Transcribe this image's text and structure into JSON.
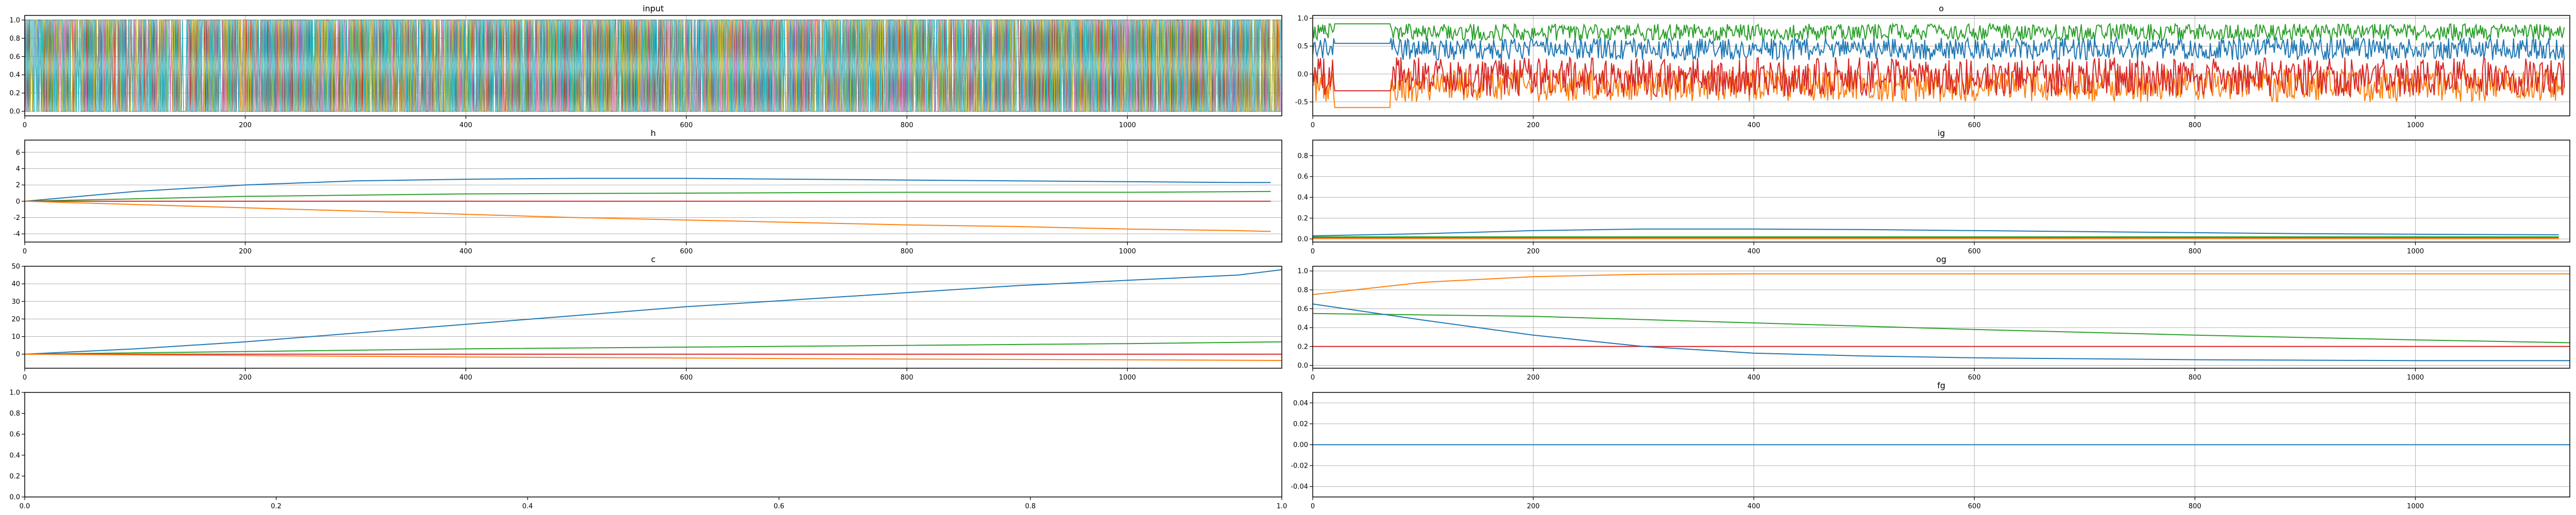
{
  "colors": [
    "#1f77b4",
    "#ff7f0e",
    "#2ca02c",
    "#d62728",
    "#9467bd",
    "#8c564b",
    "#e377c2",
    "#7f7f7f",
    "#bcbd22",
    "#17becf"
  ],
  "chart_data": [
    {
      "id": "input",
      "type": "line",
      "title": "input",
      "grid": true,
      "xlim": [
        0,
        1140
      ],
      "ylim": [
        -0.05,
        1.05
      ],
      "xticks": [
        0,
        200,
        400,
        600,
        800,
        1000
      ],
      "yticks": [
        0.0,
        0.2,
        0.4,
        0.6,
        0.8,
        1.0
      ],
      "ytick_labels": [
        "0.0",
        "0.2",
        "0.4",
        "0.6",
        "0.8",
        "1.0"
      ],
      "dense_series": {
        "kind": "binary_switching",
        "n_series": 10,
        "length": 1140,
        "values": [
          0,
          1
        ]
      }
    },
    {
      "id": "o",
      "type": "line",
      "title": "o",
      "grid": true,
      "xlim": [
        0,
        1140
      ],
      "ylim": [
        -0.75,
        1.05
      ],
      "xticks": [
        0,
        200,
        400,
        600,
        800,
        1000
      ],
      "yticks": [
        -0.5,
        0.0,
        0.5,
        1.0
      ],
      "ytick_labels": [
        "-0.5",
        "0.0",
        "0.5",
        "1.0"
      ],
      "series": [
        {
          "color": "#ff7f0e",
          "pattern": "oscillating",
          "center": -0.2,
          "amplitude": 0.3,
          "flat_region": [
            20,
            70,
            -0.6
          ]
        },
        {
          "color": "#2ca02c",
          "pattern": "oscillating",
          "center": 0.75,
          "amplitude": 0.15,
          "flat_region": [
            20,
            70,
            0.9
          ]
        },
        {
          "color": "#1f77b4",
          "pattern": "oscillating",
          "center": 0.45,
          "amplitude": 0.2,
          "flat_region": [
            20,
            70,
            0.55
          ]
        },
        {
          "color": "#d62728",
          "pattern": "oscillating",
          "center": -0.05,
          "amplitude": 0.35,
          "flat_region": [
            20,
            70,
            -0.3
          ]
        }
      ]
    },
    {
      "id": "h",
      "type": "line",
      "title": "h",
      "grid": true,
      "xlim": [
        0,
        1140
      ],
      "ylim": [
        -5,
        7.5
      ],
      "xticks": [
        0,
        200,
        400,
        600,
        800,
        1000
      ],
      "yticks": [
        -4,
        -2,
        0,
        2,
        4,
        6
      ],
      "ytick_labels": [
        "-4",
        "-2",
        "0",
        "2",
        "4",
        "6"
      ],
      "series": [
        {
          "color": "#1f77b4",
          "x": [
            0,
            100,
            200,
            300,
            400,
            500,
            600,
            700,
            800,
            900,
            1000,
            1100,
            1130
          ],
          "y": [
            0,
            1.2,
            2.0,
            2.5,
            2.7,
            2.8,
            2.8,
            2.7,
            2.6,
            2.5,
            2.4,
            2.3,
            2.3
          ]
        },
        {
          "color": "#2ca02c",
          "x": [
            0,
            200,
            400,
            600,
            800,
            1000,
            1130
          ],
          "y": [
            0,
            0.6,
            0.9,
            1.0,
            1.1,
            1.1,
            1.2
          ]
        },
        {
          "color": "#d62728",
          "x": [
            0,
            1130
          ],
          "y": [
            0,
            0
          ]
        },
        {
          "color": "#ff7f0e",
          "x": [
            0,
            100,
            200,
            300,
            400,
            500,
            600,
            700,
            800,
            900,
            1000,
            1100,
            1130
          ],
          "y": [
            0,
            -0.4,
            -0.8,
            -1.2,
            -1.6,
            -2.0,
            -2.3,
            -2.6,
            -2.9,
            -3.1,
            -3.4,
            -3.6,
            -3.7
          ]
        }
      ]
    },
    {
      "id": "ig",
      "type": "line",
      "title": "ig",
      "grid": true,
      "xlim": [
        0,
        1140
      ],
      "ylim": [
        -0.03,
        0.95
      ],
      "xticks": [
        0,
        200,
        400,
        600,
        800,
        1000
      ],
      "yticks": [
        0.0,
        0.2,
        0.4,
        0.6,
        0.8
      ],
      "ytick_labels": [
        "0.0",
        "0.2",
        "0.4",
        "0.6",
        "0.8"
      ],
      "series": [
        {
          "color": "#1f77b4",
          "x": [
            0,
            100,
            200,
            300,
            400,
            500,
            600,
            700,
            800,
            900,
            1000,
            1130
          ],
          "y": [
            0.03,
            0.05,
            0.08,
            0.095,
            0.095,
            0.09,
            0.08,
            0.07,
            0.06,
            0.05,
            0.045,
            0.04
          ]
        },
        {
          "color": "#2ca02c",
          "x": [
            0,
            1130
          ],
          "y": [
            0.02,
            0.02
          ]
        },
        {
          "color": "#d62728",
          "x": [
            0,
            1130
          ],
          "y": [
            0.01,
            0.01
          ]
        },
        {
          "color": "#ff7f0e",
          "x": [
            0,
            1130
          ],
          "y": [
            0.005,
            0.005
          ]
        }
      ]
    },
    {
      "id": "c",
      "type": "line",
      "title": "c",
      "grid": true,
      "xlim": [
        0,
        1140
      ],
      "ylim": [
        -8,
        50
      ],
      "xticks": [
        0,
        200,
        400,
        600,
        800,
        1000
      ],
      "yticks": [
        0,
        10,
        20,
        30,
        40,
        50
      ],
      "ytick_labels": [
        "0",
        "10",
        "20",
        "30",
        "40",
        "50"
      ],
      "series": [
        {
          "color": "#1f77b4",
          "x": [
            0,
            100,
            200,
            300,
            400,
            500,
            600,
            700,
            800,
            900,
            1000,
            1100,
            1140
          ],
          "y": [
            0,
            3,
            7,
            12,
            17,
            22,
            27,
            31,
            35,
            39,
            42,
            45,
            48
          ]
        },
        {
          "color": "#2ca02c",
          "x": [
            0,
            200,
            400,
            600,
            800,
            1000,
            1140
          ],
          "y": [
            0,
            1.5,
            3,
            4,
            5,
            6,
            7
          ]
        },
        {
          "color": "#d62728",
          "x": [
            0,
            1140
          ],
          "y": [
            0,
            0
          ]
        },
        {
          "color": "#ff7f0e",
          "x": [
            0,
            200,
            400,
            600,
            800,
            1000,
            1140
          ],
          "y": [
            0,
            -0.8,
            -1.6,
            -2.2,
            -2.8,
            -3.2,
            -3.6
          ]
        }
      ]
    },
    {
      "id": "og",
      "type": "line",
      "title": "og",
      "grid": true,
      "xlim": [
        0,
        1140
      ],
      "ylim": [
        -0.03,
        1.05
      ],
      "xticks": [
        0,
        200,
        400,
        600,
        800,
        1000
      ],
      "yticks": [
        0.0,
        0.2,
        0.4,
        0.6,
        0.8,
        1.0
      ],
      "ytick_labels": [
        "0.0",
        "0.2",
        "0.4",
        "0.6",
        "0.8",
        "1.0"
      ],
      "series": [
        {
          "color": "#ff7f0e",
          "x": [
            0,
            100,
            200,
            300,
            400,
            500,
            600,
            800,
            1000,
            1140
          ],
          "y": [
            0.75,
            0.88,
            0.94,
            0.965,
            0.97,
            0.97,
            0.97,
            0.97,
            0.97,
            0.97
          ]
        },
        {
          "color": "#2ca02c",
          "x": [
            0,
            200,
            400,
            600,
            800,
            1000,
            1140
          ],
          "y": [
            0.55,
            0.52,
            0.45,
            0.38,
            0.32,
            0.27,
            0.24
          ]
        },
        {
          "color": "#d62728",
          "x": [
            0,
            1140
          ],
          "y": [
            0.2,
            0.2
          ]
        },
        {
          "color": "#1f77b4",
          "x": [
            0,
            100,
            200,
            300,
            400,
            500,
            600,
            800,
            1000,
            1140
          ],
          "y": [
            0.65,
            0.48,
            0.32,
            0.2,
            0.13,
            0.1,
            0.08,
            0.06,
            0.05,
            0.05
          ]
        }
      ]
    },
    {
      "id": "empty",
      "type": "line",
      "title": "",
      "grid": false,
      "xlim": [
        0,
        1.0
      ],
      "ylim": [
        0,
        1.0
      ],
      "xticks": [
        0.0,
        0.2,
        0.4,
        0.6,
        0.8,
        1.0
      ],
      "xtick_labels": [
        "0.0",
        "0.2",
        "0.4",
        "0.6",
        "0.8",
        "1.0"
      ],
      "yticks": [
        0.0,
        0.2,
        0.4,
        0.6,
        0.8,
        1.0
      ],
      "ytick_labels": [
        "0.0",
        "0.2",
        "0.4",
        "0.6",
        "0.8",
        "1.0"
      ],
      "series": []
    },
    {
      "id": "fg",
      "type": "line",
      "title": "fg",
      "grid": true,
      "xlim": [
        0,
        1140
      ],
      "ylim": [
        -0.05,
        0.05
      ],
      "xticks": [
        0,
        200,
        400,
        600,
        800,
        1000
      ],
      "yticks": [
        -0.04,
        -0.02,
        0.0,
        0.02,
        0.04
      ],
      "ytick_labels": [
        "-0.04",
        "-0.02",
        "0.00",
        "0.02",
        "0.04"
      ],
      "series": [
        {
          "color": "#1f77b4",
          "x": [
            0,
            1140
          ],
          "y": [
            0,
            0
          ]
        }
      ]
    }
  ]
}
